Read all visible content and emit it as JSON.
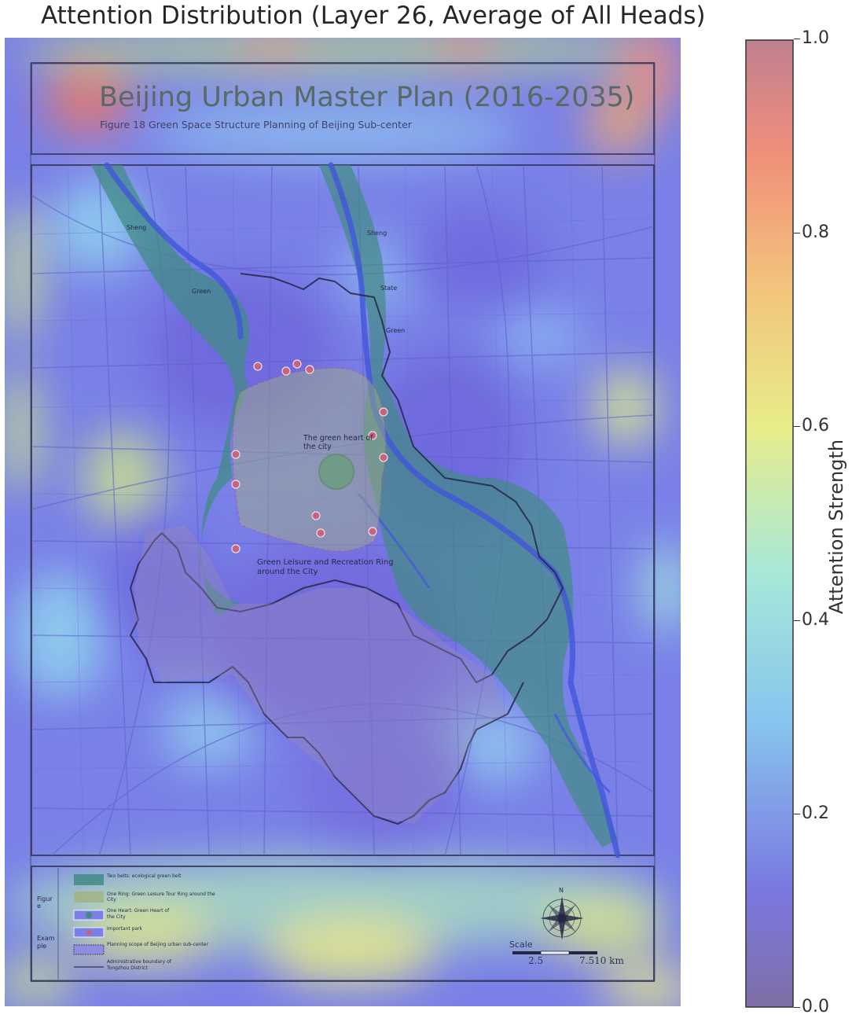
{
  "title": "Attention Distribution (Layer 26, Average of All Heads)",
  "colorbar": {
    "label": "Attention Strength",
    "ticks": [
      "1.0",
      "0.8",
      "0.6",
      "0.4",
      "0.2",
      "0.0"
    ],
    "stops": [
      "#7f6fa6",
      "#6f6fe6",
      "#7fd0ee",
      "#e8ec8a",
      "#f0a070",
      "#c08090"
    ]
  },
  "map": {
    "heading": "Beijing Urban Master Plan (2016-2035)",
    "subheading": "Figure 18 Green Space Structure Planning of Beijing Sub-center",
    "labels": {
      "sheng_left": "Sheng",
      "sheng_right": "Sheng",
      "green_left": "Green",
      "state": "State",
      "green_right": "Green",
      "heart_line1": "The green heart of",
      "heart_line2": "the city",
      "ring_line1": "Green Leisure and Recreation Ring",
      "ring_line2": "around the City"
    },
    "legend": {
      "side_label_1": "Figur",
      "side_label_2": "e",
      "side_label_3": "Exam",
      "side_label_4": "ple",
      "items": [
        "Two belts: ecological green belt",
        "One Ring: Green Leisure Tour Ring around the",
        "City",
        "One Heart: Green Heart of",
        "the City",
        "Important park",
        "Planning scope of Beijing urban sub-center",
        "Administrative boundary of",
        "Tongzhou District"
      ]
    },
    "compass": "N",
    "scale": {
      "label": "Scale",
      "v1": "2.5",
      "v2": "7.510 km"
    }
  },
  "colors": {
    "heat_base": "#7a7fe8",
    "green_belt": "#3a8c78",
    "frame": "#2a2a44",
    "heading_text": "#556655"
  }
}
